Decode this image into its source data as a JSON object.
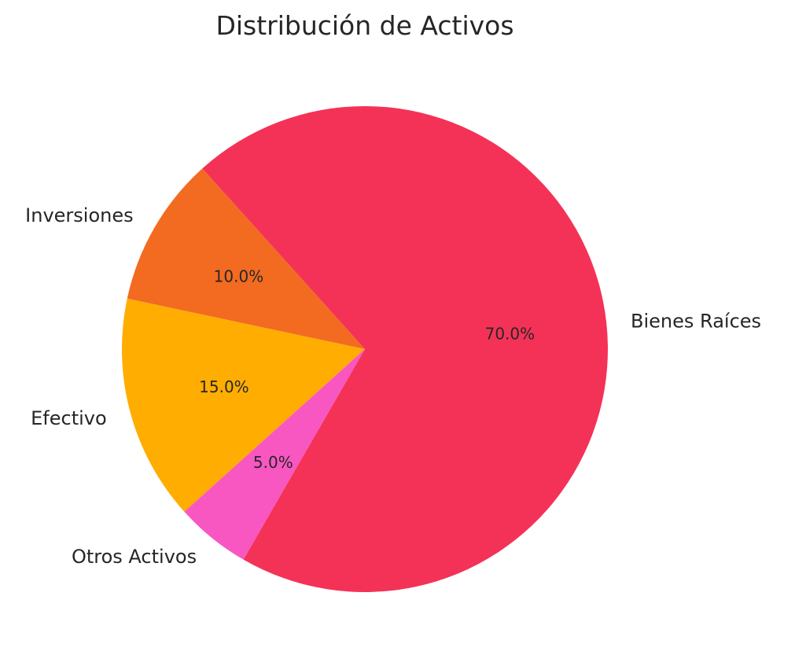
{
  "chart_data": {
    "type": "pie",
    "title": "Distribución de Activos",
    "slices": [
      {
        "label": "Bienes Raíces",
        "value": 70,
        "pct_label": "70.0%",
        "color": "#F43257"
      },
      {
        "label": "Inversiones",
        "value": 10,
        "pct_label": "10.0%",
        "color": "#F26B21"
      },
      {
        "label": "Efectivo",
        "value": 15,
        "pct_label": "15.0%",
        "color": "#FFAD00"
      },
      {
        "label": "Otros Activos",
        "value": 5,
        "pct_label": "5.0%",
        "color": "#F857C1"
      }
    ],
    "legend": "none",
    "grid": false
  }
}
